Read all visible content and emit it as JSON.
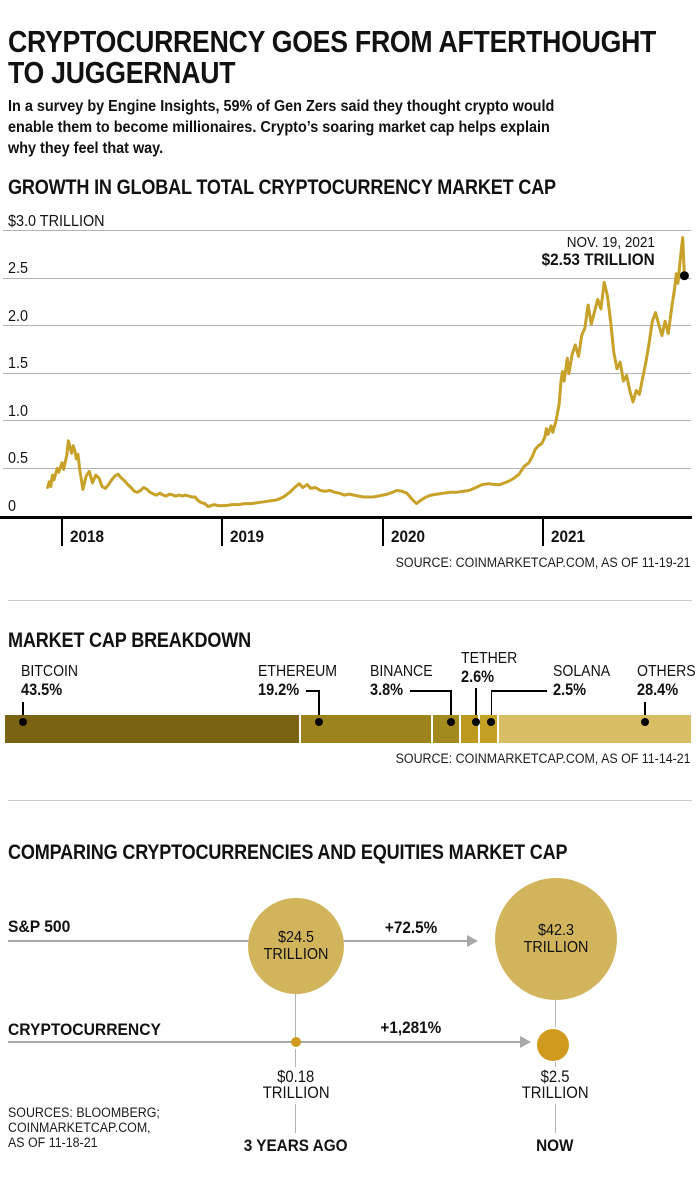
{
  "header": {
    "title_lines": [
      "CRYPTOCURRENCY GOES FROM AFTERTHOUGHT",
      "TO JUGGERNAUT"
    ],
    "intro_lines": [
      "In a survey by Engine Insights, 59% of Gen Zers said they thought crypto would",
      "enable them to become millionaires. Crypto’s soaring market cap helps explain",
      "why they feel that way."
    ]
  },
  "chart_data": [
    {
      "type": "line",
      "title": "GROWTH IN GLOBAL TOTAL CRYPTOCURRENCY MARKET CAP",
      "unit": "trillion USD",
      "line_color": "#c7a128",
      "ylim": [
        0,
        3.0
      ],
      "yticks": {
        "labels": [
          "$3.0 TRILLION",
          "2.5",
          "2.0",
          "1.5",
          "1.0",
          "0.5",
          "0"
        ],
        "values": [
          3.0,
          2.5,
          2.0,
          1.5,
          1.0,
          0.5,
          0
        ]
      },
      "xticks": {
        "labels": [
          "2018",
          "2019",
          "2020",
          "2021"
        ],
        "values": [
          2018,
          2019,
          2020,
          2021
        ]
      },
      "annotation": {
        "line1": "NOV. 19, 2021",
        "line2": "$2.53 TRILLION",
        "value": 2.53,
        "t": 2021.88
      },
      "source": "SOURCE: COINMARKETCAP.COM, AS OF 11-19-21",
      "points": [
        [
          2017.91,
          0.3
        ],
        [
          2017.92,
          0.36
        ],
        [
          2017.93,
          0.31
        ],
        [
          2017.94,
          0.43
        ],
        [
          2017.95,
          0.38
        ],
        [
          2017.97,
          0.5
        ],
        [
          2017.98,
          0.46
        ],
        [
          2018.0,
          0.56
        ],
        [
          2018.01,
          0.49
        ],
        [
          2018.03,
          0.64
        ],
        [
          2018.04,
          0.79
        ],
        [
          2018.05,
          0.72
        ],
        [
          2018.06,
          0.66
        ],
        [
          2018.07,
          0.74
        ],
        [
          2018.08,
          0.69
        ],
        [
          2018.09,
          0.6
        ],
        [
          2018.1,
          0.65
        ],
        [
          2018.11,
          0.5
        ],
        [
          2018.13,
          0.28
        ],
        [
          2018.15,
          0.42
        ],
        [
          2018.17,
          0.47
        ],
        [
          2018.19,
          0.35
        ],
        [
          2018.21,
          0.43
        ],
        [
          2018.23,
          0.4
        ],
        [
          2018.25,
          0.31
        ],
        [
          2018.27,
          0.29
        ],
        [
          2018.29,
          0.33
        ],
        [
          2018.31,
          0.38
        ],
        [
          2018.33,
          0.42
        ],
        [
          2018.35,
          0.44
        ],
        [
          2018.37,
          0.4
        ],
        [
          2018.39,
          0.37
        ],
        [
          2018.41,
          0.33
        ],
        [
          2018.43,
          0.3
        ],
        [
          2018.45,
          0.26
        ],
        [
          2018.47,
          0.25
        ],
        [
          2018.49,
          0.27
        ],
        [
          2018.51,
          0.3
        ],
        [
          2018.53,
          0.28
        ],
        [
          2018.55,
          0.25
        ],
        [
          2018.57,
          0.23
        ],
        [
          2018.59,
          0.22
        ],
        [
          2018.61,
          0.24
        ],
        [
          2018.63,
          0.22
        ],
        [
          2018.65,
          0.21
        ],
        [
          2018.67,
          0.23
        ],
        [
          2018.69,
          0.22
        ],
        [
          2018.71,
          0.21
        ],
        [
          2018.73,
          0.22
        ],
        [
          2018.75,
          0.21
        ],
        [
          2018.77,
          0.22
        ],
        [
          2018.79,
          0.21
        ],
        [
          2018.81,
          0.2
        ],
        [
          2018.83,
          0.2
        ],
        [
          2018.85,
          0.16
        ],
        [
          2018.87,
          0.14
        ],
        [
          2018.89,
          0.13
        ],
        [
          2018.91,
          0.1
        ],
        [
          2018.93,
          0.11
        ],
        [
          2018.95,
          0.12
        ],
        [
          2018.97,
          0.11
        ],
        [
          2018.99,
          0.11
        ],
        [
          2019.02,
          0.11
        ],
        [
          2019.06,
          0.12
        ],
        [
          2019.1,
          0.12
        ],
        [
          2019.14,
          0.13
        ],
        [
          2019.18,
          0.13
        ],
        [
          2019.22,
          0.14
        ],
        [
          2019.26,
          0.15
        ],
        [
          2019.3,
          0.16
        ],
        [
          2019.34,
          0.17
        ],
        [
          2019.38,
          0.2
        ],
        [
          2019.42,
          0.25
        ],
        [
          2019.45,
          0.3
        ],
        [
          2019.48,
          0.34
        ],
        [
          2019.5,
          0.3
        ],
        [
          2019.53,
          0.33
        ],
        [
          2019.55,
          0.29
        ],
        [
          2019.58,
          0.3
        ],
        [
          2019.61,
          0.27
        ],
        [
          2019.64,
          0.26
        ],
        [
          2019.67,
          0.27
        ],
        [
          2019.7,
          0.25
        ],
        [
          2019.73,
          0.24
        ],
        [
          2019.76,
          0.22
        ],
        [
          2019.79,
          0.23
        ],
        [
          2019.82,
          0.22
        ],
        [
          2019.85,
          0.21
        ],
        [
          2019.88,
          0.2
        ],
        [
          2019.91,
          0.2
        ],
        [
          2019.94,
          0.2
        ],
        [
          2019.97,
          0.21
        ],
        [
          2020.0,
          0.22
        ],
        [
          2020.03,
          0.23
        ],
        [
          2020.06,
          0.25
        ],
        [
          2020.09,
          0.27
        ],
        [
          2020.12,
          0.26
        ],
        [
          2020.15,
          0.24
        ],
        [
          2020.18,
          0.18
        ],
        [
          2020.21,
          0.13
        ],
        [
          2020.24,
          0.17
        ],
        [
          2020.27,
          0.2
        ],
        [
          2020.3,
          0.22
        ],
        [
          2020.34,
          0.23
        ],
        [
          2020.38,
          0.24
        ],
        [
          2020.42,
          0.25
        ],
        [
          2020.46,
          0.25
        ],
        [
          2020.5,
          0.26
        ],
        [
          2020.54,
          0.27
        ],
        [
          2020.58,
          0.3
        ],
        [
          2020.62,
          0.33
        ],
        [
          2020.66,
          0.34
        ],
        [
          2020.7,
          0.33
        ],
        [
          2020.73,
          0.33
        ],
        [
          2020.76,
          0.35
        ],
        [
          2020.79,
          0.37
        ],
        [
          2020.82,
          0.4
        ],
        [
          2020.85,
          0.44
        ],
        [
          2020.88,
          0.52
        ],
        [
          2020.91,
          0.56
        ],
        [
          2020.93,
          0.62
        ],
        [
          2020.95,
          0.7
        ],
        [
          2020.97,
          0.74
        ],
        [
          2020.99,
          0.76
        ],
        [
          2021.01,
          0.83
        ],
        [
          2021.02,
          0.92
        ],
        [
          2021.03,
          0.86
        ],
        [
          2021.05,
          0.95
        ],
        [
          2021.06,
          0.88
        ],
        [
          2021.08,
          1.0
        ],
        [
          2021.1,
          1.18
        ],
        [
          2021.11,
          1.4
        ],
        [
          2021.12,
          1.52
        ],
        [
          2021.13,
          1.42
        ],
        [
          2021.15,
          1.66
        ],
        [
          2021.16,
          1.5
        ],
        [
          2021.18,
          1.7
        ],
        [
          2021.2,
          1.8
        ],
        [
          2021.22,
          1.68
        ],
        [
          2021.24,
          1.9
        ],
        [
          2021.26,
          1.98
        ],
        [
          2021.28,
          2.22
        ],
        [
          2021.3,
          2.02
        ],
        [
          2021.32,
          2.15
        ],
        [
          2021.34,
          2.28
        ],
        [
          2021.36,
          2.18
        ],
        [
          2021.38,
          2.46
        ],
        [
          2021.4,
          2.32
        ],
        [
          2021.42,
          2.05
        ],
        [
          2021.44,
          1.72
        ],
        [
          2021.46,
          1.55
        ],
        [
          2021.48,
          1.62
        ],
        [
          2021.5,
          1.42
        ],
        [
          2021.52,
          1.48
        ],
        [
          2021.54,
          1.32
        ],
        [
          2021.56,
          1.2
        ],
        [
          2021.58,
          1.32
        ],
        [
          2021.6,
          1.28
        ],
        [
          2021.62,
          1.45
        ],
        [
          2021.64,
          1.62
        ],
        [
          2021.66,
          1.82
        ],
        [
          2021.68,
          2.05
        ],
        [
          2021.7,
          2.14
        ],
        [
          2021.72,
          2.02
        ],
        [
          2021.74,
          1.9
        ],
        [
          2021.76,
          2.05
        ],
        [
          2021.78,
          1.92
        ],
        [
          2021.8,
          2.18
        ],
        [
          2021.82,
          2.4
        ],
        [
          2021.83,
          2.55
        ],
        [
          2021.84,
          2.45
        ],
        [
          2021.85,
          2.62
        ],
        [
          2021.86,
          2.78
        ],
        [
          2021.87,
          2.93
        ],
        [
          2021.88,
          2.53
        ]
      ]
    },
    {
      "type": "stacked-bar",
      "title": "MARKET CAP BREAKDOWN",
      "segments": [
        {
          "name": "BITCOIN",
          "pct": 43.5,
          "pct_label": "43.5%",
          "color": "#7a6414"
        },
        {
          "name": "ETHEREUM",
          "pct": 19.2,
          "pct_label": "19.2%",
          "color": "#9c831c"
        },
        {
          "name": "BINANCE",
          "pct": 3.8,
          "pct_label": "3.8%",
          "color": "#a38a1e"
        },
        {
          "name": "TETHER",
          "pct": 2.6,
          "pct_label": "2.6%",
          "color": "#bd9a1f"
        },
        {
          "name": "SOLANA",
          "pct": 2.5,
          "pct_label": "2.5%",
          "color": "#c2a125"
        },
        {
          "name": "OTHERS",
          "pct": 28.4,
          "pct_label": "28.4%",
          "color": "#d7bd64"
        }
      ],
      "source": "SOURCE: COINMARKETCAP.COM, AS OF 11-14-21"
    },
    {
      "type": "bubble-comparison",
      "title": "COMPARING CRYPTOCURRENCIES AND EQUITIES MARKET CAP",
      "columns": [
        "3 YEARS AGO",
        "NOW"
      ],
      "rows": [
        {
          "label": "S&P 500",
          "then_value": "$24.5",
          "then_unit": "TRILLION",
          "change": "+72.5%",
          "now_value": "$42.3",
          "now_unit": "TRILLION",
          "bubble_color": "#d2b45c"
        },
        {
          "label": "CRYPTOCURRENCY",
          "then_value": "$0.18",
          "then_unit": "TRILLION",
          "change": "+1,281%",
          "now_value": "$2.5",
          "now_unit": "TRILLION",
          "bubble_color": "#d09a1e"
        }
      ],
      "sources_lines": [
        "SOURCES: BLOOMBERG;",
        "COINMARKETCAP.COM,",
        "AS OF 11-18-21"
      ]
    }
  ]
}
